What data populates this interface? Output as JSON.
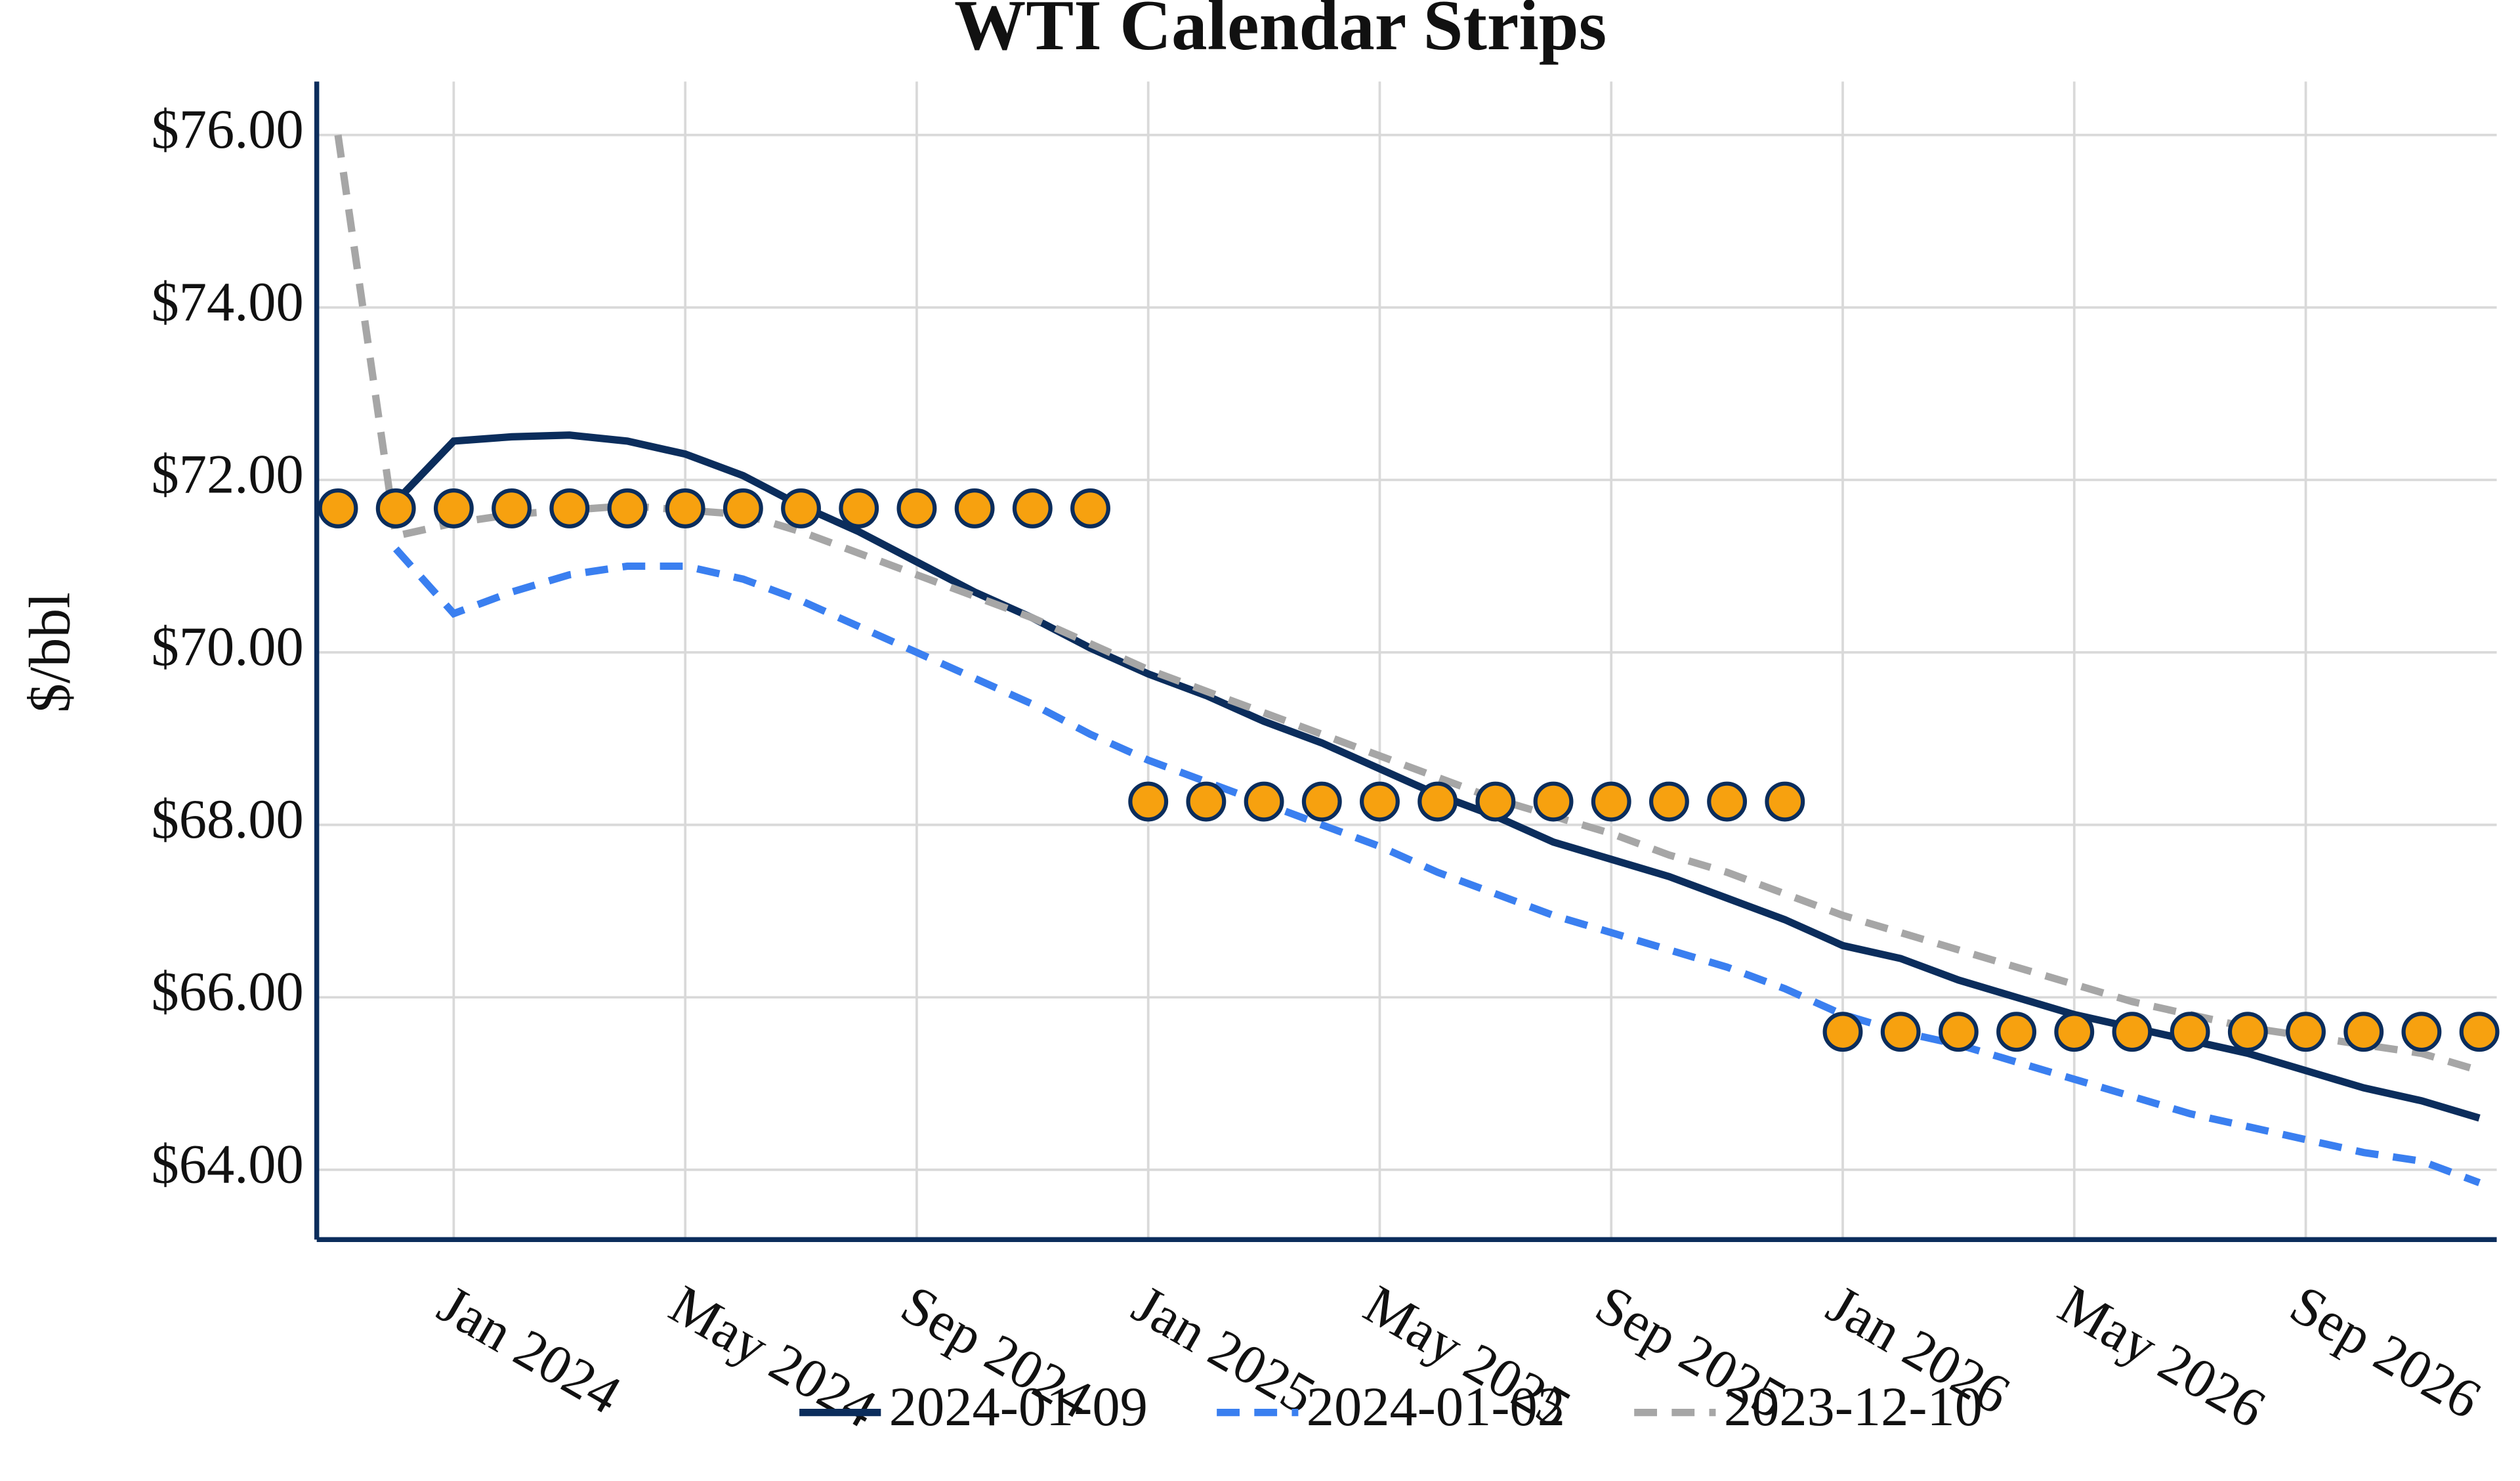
{
  "chart_data": {
    "type": "line",
    "title": "WTI Calendar Strips",
    "y_label": "$/bbl",
    "x": [
      "2023-11",
      "2023-12",
      "2024-01",
      "2024-02",
      "2024-03",
      "2024-04",
      "2024-05",
      "2024-06",
      "2024-07",
      "2024-08",
      "2024-09",
      "2024-10",
      "2024-11",
      "2024-12",
      "2025-01",
      "2025-02",
      "2025-03",
      "2025-04",
      "2025-05",
      "2025-06",
      "2025-07",
      "2025-08",
      "2025-09",
      "2025-10",
      "2025-11",
      "2025-12",
      "2026-01",
      "2026-02",
      "2026-03",
      "2026-04",
      "2026-05",
      "2026-06",
      "2026-07",
      "2026-08",
      "2026-09",
      "2026-10",
      "2026-11",
      "2026-12"
    ],
    "series": [
      {
        "name": "2024-01-09",
        "color": "#0b2d5c",
        "dash": "solid",
        "values": [
          null,
          71.75,
          72.45,
          72.5,
          72.52,
          72.45,
          72.3,
          72.05,
          71.7,
          71.4,
          71.05,
          70.7,
          70.4,
          70.05,
          69.75,
          69.5,
          69.2,
          68.95,
          68.65,
          68.35,
          68.1,
          67.8,
          67.6,
          67.4,
          67.15,
          66.9,
          66.6,
          66.45,
          66.2,
          66.0,
          65.8,
          65.65,
          65.5,
          65.35,
          65.15,
          64.95,
          64.8,
          64.6
        ]
      },
      {
        "name": "2024-01-02",
        "color": "#3a7ff0",
        "dash": "dashed",
        "values": [
          null,
          71.2,
          70.45,
          70.7,
          70.9,
          71.0,
          71.0,
          70.85,
          70.6,
          70.3,
          70.0,
          69.7,
          69.4,
          69.05,
          68.75,
          68.5,
          68.25,
          68.0,
          67.75,
          67.45,
          67.2,
          66.95,
          66.75,
          66.55,
          66.35,
          66.1,
          65.8,
          65.6,
          65.45,
          65.25,
          65.05,
          64.85,
          64.65,
          64.5,
          64.35,
          64.2,
          64.1,
          63.85
        ]
      },
      {
        "name": "2023-12-10",
        "color": "#a6a6a6",
        "dash": "dashed",
        "values": [
          76.0,
          71.35,
          71.5,
          71.6,
          71.65,
          71.7,
          71.65,
          71.6,
          71.4,
          71.15,
          70.9,
          70.65,
          70.4,
          70.1,
          69.8,
          69.55,
          69.3,
          69.05,
          68.8,
          68.55,
          68.3,
          68.1,
          67.9,
          67.65,
          67.45,
          67.2,
          66.95,
          66.75,
          66.55,
          66.35,
          66.15,
          65.95,
          65.8,
          65.65,
          65.55,
          65.45,
          65.35,
          65.15
        ]
      }
    ],
    "markers": {
      "color": "#f7a10f",
      "edge_color": "#0b2d5c",
      "values": [
        71.67,
        71.67,
        71.67,
        71.67,
        71.67,
        71.67,
        71.67,
        71.67,
        71.67,
        71.67,
        71.67,
        71.67,
        71.67,
        71.67,
        68.27,
        68.27,
        68.27,
        68.27,
        68.27,
        68.27,
        68.27,
        68.27,
        68.27,
        68.27,
        68.27,
        68.27,
        65.6,
        65.6,
        65.6,
        65.6,
        65.6,
        65.6,
        65.6,
        65.6,
        65.6,
        65.6,
        65.6,
        65.6
      ]
    },
    "xlim": [
      "2023-10-20",
      "2026-12-10"
    ],
    "xticks": [
      {
        "value": "2024-01",
        "label": "Jan 2024"
      },
      {
        "value": "2024-05",
        "label": "May 2024"
      },
      {
        "value": "2024-09",
        "label": "Sep 2024"
      },
      {
        "value": "2025-01",
        "label": "Jan 2025"
      },
      {
        "value": "2025-05",
        "label": "May 2025"
      },
      {
        "value": "2025-09",
        "label": "Sep 2025"
      },
      {
        "value": "2026-01",
        "label": "Jan 2026"
      },
      {
        "value": "2026-05",
        "label": "May 2026"
      },
      {
        "value": "2026-09",
        "label": "Sep 2026"
      }
    ],
    "ylim": [
      63.19,
      76.62
    ],
    "yticks": [
      {
        "value": 64,
        "label": "$64.00"
      },
      {
        "value": 66,
        "label": "$66.00"
      },
      {
        "value": 68,
        "label": "$68.00"
      },
      {
        "value": 70,
        "label": "$70.00"
      },
      {
        "value": 72,
        "label": "$72.00"
      },
      {
        "value": 74,
        "label": "$74.00"
      },
      {
        "value": 76,
        "label": "$76.00"
      }
    ],
    "grid": true,
    "legend": "bottom"
  }
}
